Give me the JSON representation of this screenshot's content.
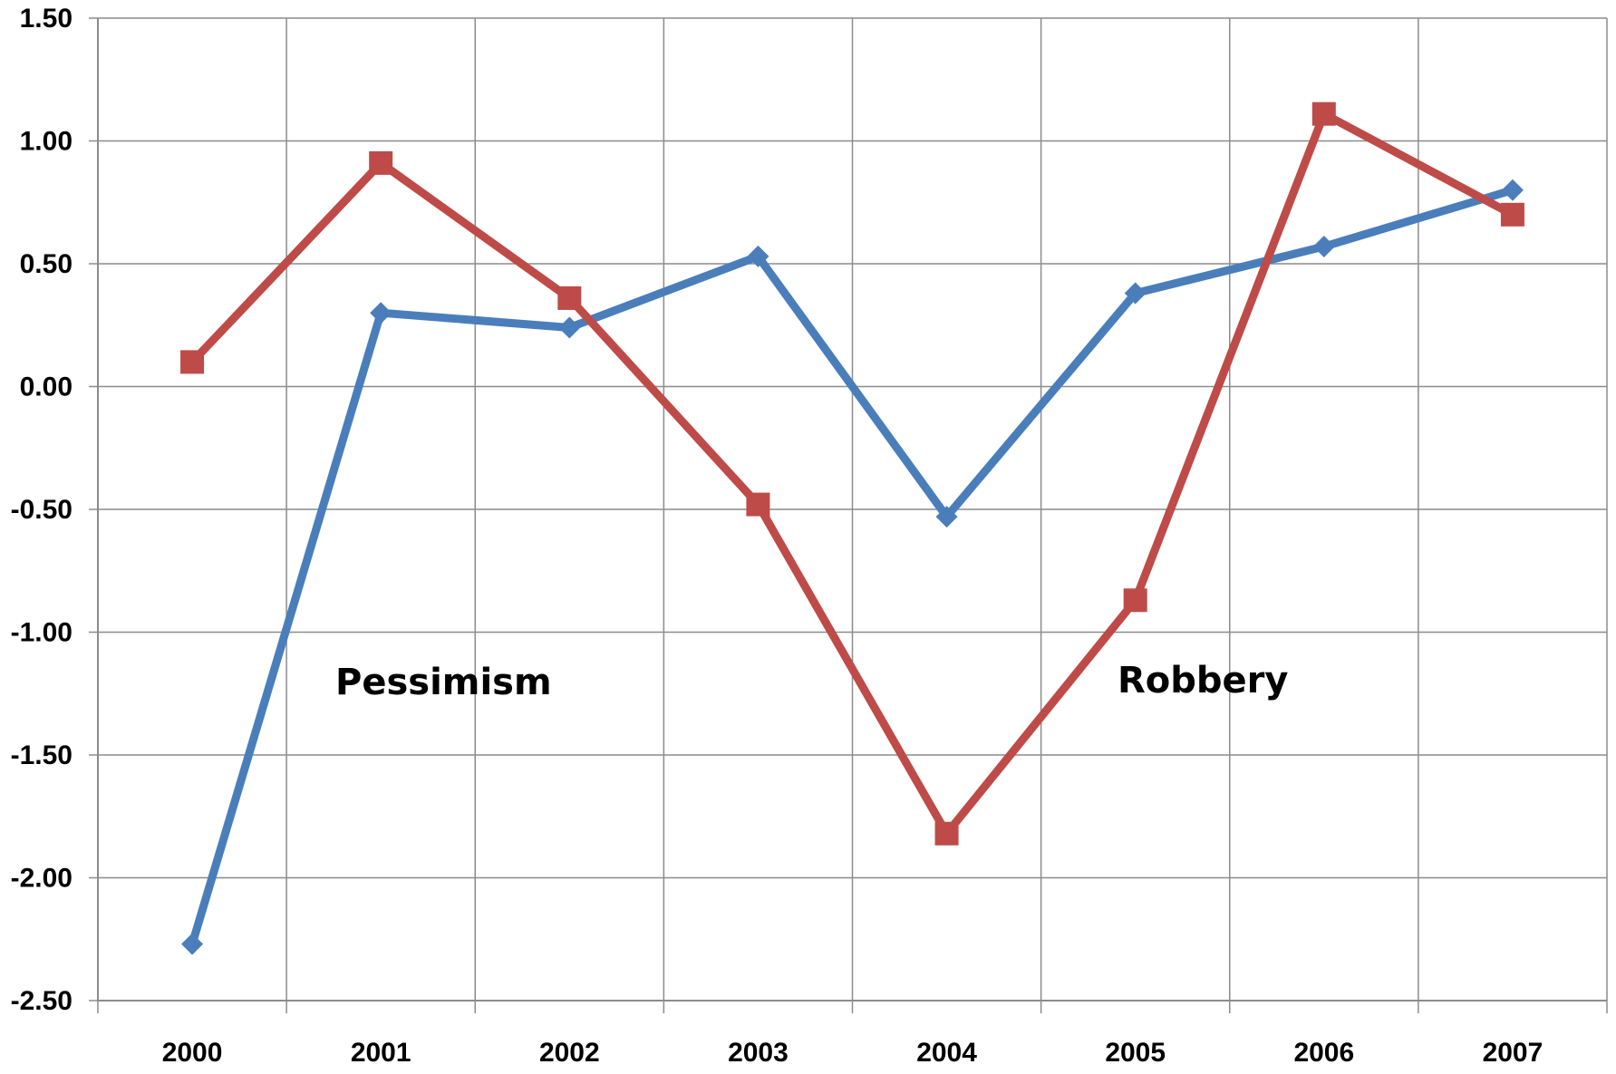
{
  "chart_data": {
    "type": "line",
    "x": [
      "2000",
      "2001",
      "2002",
      "2003",
      "2004",
      "2005",
      "2006",
      "2007"
    ],
    "y_ticks": [
      "-2.50",
      "-2.00",
      "-1.50",
      "-1.00",
      "-0.50",
      "0.00",
      "0.50",
      "1.00",
      "1.50"
    ],
    "ylim": [
      -2.5,
      1.5
    ],
    "grid": true,
    "series": [
      {
        "color": "#4a7ebb",
        "marker": "diamond",
        "values": [
          -2.27,
          0.3,
          0.24,
          0.53,
          -0.53,
          0.38,
          0.57,
          0.8
        ]
      },
      {
        "color": "#be4b48",
        "marker": "square",
        "values": [
          0.1,
          0.91,
          0.36,
          -0.48,
          -1.82,
          -0.87,
          1.11,
          0.7
        ]
      }
    ],
    "annotations": [
      {
        "text": "Pessimism",
        "x": "2001.3",
        "y": -1.2
      },
      {
        "text": "Robbery",
        "x": "2005.3",
        "y": -1.2
      }
    ]
  }
}
